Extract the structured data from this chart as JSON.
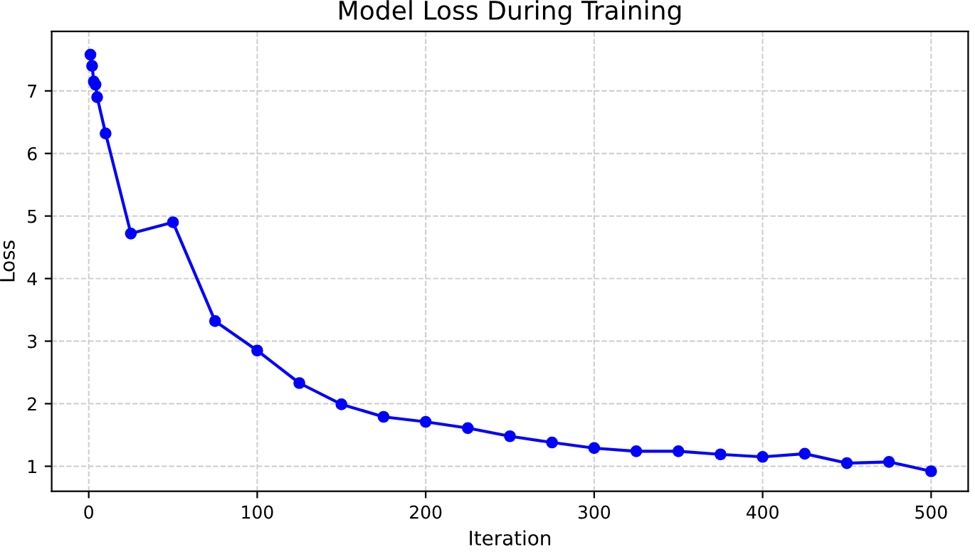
{
  "chart_data": {
    "type": "line",
    "title": "Model Loss During Training",
    "xlabel": "Iteration",
    "ylabel": "Loss",
    "x": [
      1,
      2,
      3,
      4,
      5,
      10,
      25,
      50,
      75,
      100,
      125,
      150,
      175,
      200,
      225,
      250,
      275,
      300,
      325,
      350,
      375,
      400,
      425,
      450,
      475,
      500
    ],
    "series": [
      {
        "color": "#0000ff",
        "values": [
          7.58,
          7.4,
          7.15,
          7.1,
          6.9,
          6.32,
          4.72,
          4.9,
          3.32,
          2.85,
          2.33,
          1.99,
          1.79,
          1.71,
          1.61,
          1.48,
          1.38,
          1.29,
          1.24,
          1.24,
          1.19,
          1.15,
          1.2,
          1.05,
          1.07,
          0.92
        ]
      }
    ],
    "xlim": [
      -22,
      522
    ],
    "ylim": [
      0.6,
      7.95
    ],
    "xticks": [
      0,
      100,
      200,
      300,
      400,
      500
    ],
    "yticks": [
      1,
      2,
      3,
      4,
      5,
      6,
      7
    ],
    "grid": true,
    "marker": "circle",
    "line_style": "solid"
  }
}
